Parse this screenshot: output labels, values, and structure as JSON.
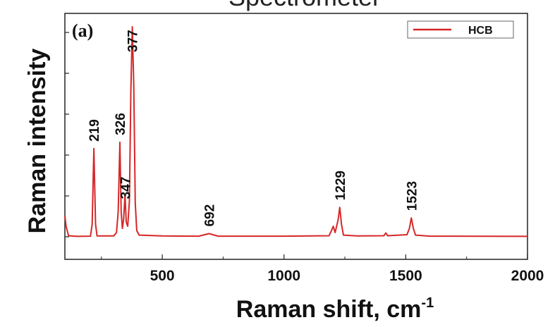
{
  "header_text": "Spectrometer",
  "chart_data": {
    "type": "line",
    "panel_label": "(a)",
    "title": "",
    "xlabel": "Raman shift, cm",
    "xlabel_superscript": "-1",
    "ylabel": "Raman intensity",
    "xlim": [
      100,
      2000
    ],
    "ylim": [
      0,
      100
    ],
    "x_ticks": [
      500,
      1000,
      1500,
      2000
    ],
    "grid": false,
    "legend": {
      "placement": "top-right"
    },
    "series": [
      {
        "name": "HCB",
        "color": "#d62728",
        "points": [
          [
            100,
            10
          ],
          [
            105,
            5
          ],
          [
            115,
            0.5
          ],
          [
            150,
            0.2
          ],
          [
            205,
            0.3
          ],
          [
            212,
            6
          ],
          [
            219,
            42
          ],
          [
            226,
            6
          ],
          [
            232,
            0.4
          ],
          [
            300,
            0.4
          ],
          [
            312,
            2
          ],
          [
            319,
            12
          ],
          [
            326,
            45
          ],
          [
            331,
            12
          ],
          [
            336,
            4
          ],
          [
            341,
            8
          ],
          [
            347,
            20
          ],
          [
            352,
            7
          ],
          [
            358,
            5
          ],
          [
            365,
            17
          ],
          [
            371,
            70
          ],
          [
            377,
            100
          ],
          [
            383,
            72
          ],
          [
            389,
            16
          ],
          [
            395,
            3
          ],
          [
            405,
            0.8
          ],
          [
            500,
            0.4
          ],
          [
            650,
            0.3
          ],
          [
            692,
            1.5
          ],
          [
            730,
            0.3
          ],
          [
            1000,
            0.3
          ],
          [
            1185,
            0.5
          ],
          [
            1195,
            3
          ],
          [
            1202,
            5
          ],
          [
            1210,
            2
          ],
          [
            1222,
            8
          ],
          [
            1229,
            14
          ],
          [
            1236,
            6
          ],
          [
            1244,
            0.8
          ],
          [
            1300,
            0.4
          ],
          [
            1410,
            0.5
          ],
          [
            1418,
            1.8
          ],
          [
            1426,
            0.5
          ],
          [
            1505,
            1
          ],
          [
            1515,
            4
          ],
          [
            1523,
            9
          ],
          [
            1531,
            4
          ],
          [
            1540,
            0.8
          ],
          [
            1600,
            0.3
          ],
          [
            2000,
            0.2
          ]
        ]
      }
    ],
    "annotations": [
      {
        "text": "219",
        "x": 219,
        "y": 42
      },
      {
        "text": "326",
        "x": 326,
        "y": 45
      },
      {
        "text": "347",
        "x": 347,
        "y": 20
      },
      {
        "text": "377",
        "x": 377,
        "y": 100
      },
      {
        "text": "692",
        "x": 692,
        "y": 1.5
      },
      {
        "text": "1229",
        "x": 1229,
        "y": 14
      },
      {
        "text": "1523",
        "x": 1523,
        "y": 9
      }
    ]
  }
}
